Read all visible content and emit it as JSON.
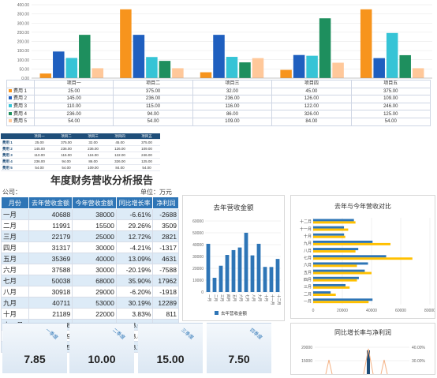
{
  "top_chart": {
    "y_ticks": [
      "400.00",
      "350.00",
      "300.00",
      "250.00",
      "200.00",
      "150.00",
      "100.00",
      "50.00",
      "0.00"
    ],
    "categories": [
      "项目一",
      "项目二",
      "项目三",
      "项目四",
      "项目五"
    ],
    "series": [
      {
        "name": "费用 1",
        "color": "#f7941d",
        "values": [
          25.0,
          375.0,
          32.0,
          45.0,
          375.0
        ]
      },
      {
        "name": "费用 2",
        "color": "#1f5fbf",
        "values": [
          145.0,
          236.0,
          236.0,
          126.0,
          109.0
        ]
      },
      {
        "name": "费用 3",
        "color": "#36c4d6",
        "values": [
          110.0,
          115.0,
          116.0,
          122.0,
          246.0
        ]
      },
      {
        "name": "费用 4",
        "color": "#1e8f5e",
        "values": [
          236.0,
          94.0,
          86.0,
          326.0,
          125.0
        ]
      },
      {
        "name": "费用 5",
        "color": "#ffc89a",
        "values": [
          54.0,
          54.0,
          109.0,
          84.0,
          54.0
        ]
      }
    ],
    "table_rows": [
      [
        "25.00",
        "375.00",
        "32.00",
        "45.00",
        "375.00"
      ],
      [
        "145.00",
        "236.00",
        "236.00",
        "126.00",
        "109.00"
      ],
      [
        "110.00",
        "115.00",
        "116.00",
        "122.00",
        "246.00"
      ],
      [
        "236.00",
        "94.00",
        "86.00",
        "326.00",
        "125.00"
      ],
      [
        "54.00",
        "54.00",
        "109.00",
        "84.00",
        "54.00"
      ]
    ]
  },
  "small_table": {
    "headers": [
      "",
      "项目一",
      "项目二",
      "项目三",
      "项目四",
      "项目五"
    ],
    "rows": [
      [
        "费用 1",
        "25.00",
        "375.00",
        "32.00",
        "45.00",
        "375.00"
      ],
      [
        "费用 2",
        "145.00",
        "236.00",
        "236.00",
        "126.00",
        "109.00"
      ],
      [
        "费用 3",
        "110.00",
        "115.00",
        "116.00",
        "122.00",
        "246.00"
      ],
      [
        "费用 4",
        "236.00",
        "94.00",
        "86.00",
        "326.00",
        "125.00"
      ],
      [
        "费用 5",
        "54.00",
        "54.00",
        "109.00",
        "84.00",
        "54.00"
      ]
    ]
  },
  "report": {
    "title": "年度财务营收分析报告",
    "company_label": "公司：",
    "unit_label": "单位：万元",
    "headers": [
      "月份",
      "去年营收金额",
      "今年营收金额",
      "同比增长率",
      "净利润"
    ],
    "rows": [
      [
        "一月",
        "40688",
        "38000",
        "-6.61%",
        "-2688"
      ],
      [
        "二月",
        "11991",
        "15500",
        "29.26%",
        "3509"
      ],
      [
        "三月",
        "22179",
        "25000",
        "12.72%",
        "2821"
      ],
      [
        "四月",
        "31317",
        "30000",
        "-4.21%",
        "-1317"
      ],
      [
        "五月",
        "35369",
        "40000",
        "13.09%",
        "4631"
      ],
      [
        "六月",
        "37588",
        "30000",
        "-20.19%",
        "-7588"
      ],
      [
        "七月",
        "50038",
        "68000",
        "35.90%",
        "17962"
      ],
      [
        "八月",
        "30918",
        "29000",
        "-6.20%",
        "-1918"
      ],
      [
        "九月",
        "40711",
        "53000",
        "30.19%",
        "12289"
      ],
      [
        "十月",
        "21189",
        "22000",
        "3.83%",
        "811"
      ],
      [
        "十一月",
        "21118",
        "24000",
        "13.65%",
        "2882"
      ],
      [
        "十二月",
        "27929",
        "29000",
        "3.83%",
        "1071"
      ],
      [
        "合计",
        "371035",
        "403500",
        "8.75%",
        "32465"
      ]
    ]
  },
  "chart_data": [
    {
      "type": "bar",
      "title": "",
      "categories": [
        "项目一",
        "项目二",
        "项目三",
        "项目四",
        "项目五"
      ],
      "ylim": [
        0,
        400
      ],
      "series": [
        {
          "name": "费用 1",
          "values": [
            25,
            375,
            32,
            45,
            375
          ]
        },
        {
          "name": "费用 2",
          "values": [
            145,
            236,
            236,
            126,
            109
          ]
        },
        {
          "name": "费用 3",
          "values": [
            110,
            115,
            116,
            122,
            246
          ]
        },
        {
          "name": "费用 4",
          "values": [
            236,
            94,
            86,
            326,
            125
          ]
        },
        {
          "name": "费用 5",
          "values": [
            54,
            54,
            109,
            84,
            54
          ]
        }
      ]
    },
    {
      "type": "bar",
      "title": "去年营收金额",
      "categories": [
        "一月",
        "二月",
        "三月",
        "四月",
        "五月",
        "六月",
        "七月",
        "八月",
        "九月",
        "十月",
        "十一月",
        "十二月"
      ],
      "ylim": [
        0,
        60000
      ],
      "y_ticks": [
        "60000",
        "50000",
        "40000",
        "30000",
        "20000",
        "10000",
        "0"
      ],
      "series": [
        {
          "name": "去年营收金额",
          "values": [
            40688,
            11991,
            22179,
            31317,
            35369,
            37588,
            50038,
            30918,
            40711,
            21189,
            21118,
            27929
          ]
        }
      ],
      "legend": "bottom"
    },
    {
      "type": "bar",
      "orientation": "horizontal",
      "title": "去年与今年营收对比",
      "categories": [
        "一月",
        "二月",
        "三月",
        "四月",
        "五月",
        "六月",
        "七月",
        "八月",
        "九月",
        "十月",
        "十一月",
        "十二月"
      ],
      "xlim": [
        0,
        80000
      ],
      "x_ticks": [
        "0",
        "20000",
        "40000",
        "60000",
        "80000"
      ],
      "series": [
        {
          "color": "#2e75b6",
          "values": [
            40688,
            11991,
            22179,
            31317,
            35369,
            37588,
            50038,
            30918,
            40711,
            21189,
            21118,
            27929
          ]
        },
        {
          "color": "#ffc000",
          "values": [
            38000,
            15500,
            25000,
            30000,
            40000,
            30000,
            68000,
            29000,
            53000,
            22000,
            24000,
            29000
          ]
        }
      ]
    },
    {
      "type": "line",
      "title": "同比增长率与净利润",
      "y_ticks_left": [
        "20000",
        "15000"
      ],
      "y_ticks_right": [
        "40.00%",
        "30.00%"
      ]
    }
  ],
  "kpis": [
    {
      "tag": "一季度",
      "value": "7.85"
    },
    {
      "tag": "二季度",
      "value": "10.00"
    },
    {
      "tag": "三季度",
      "value": "15.00"
    },
    {
      "tag": "四季度",
      "value": "7.50"
    }
  ],
  "colors": {
    "accent": "#2e75b6",
    "yellow": "#ffc000"
  }
}
